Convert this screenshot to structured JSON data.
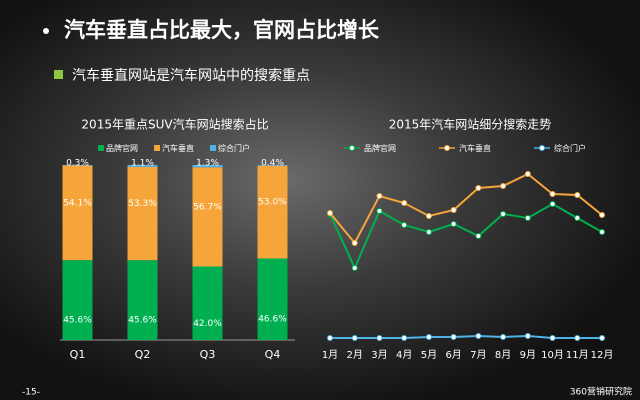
{
  "header": {
    "title": "汽车垂直占比最大，官网占比增长",
    "bullet": "汽车垂直网站是汽车网站中的搜索重点"
  },
  "footer": {
    "page": "-15-",
    "brand": "360营销研究院"
  },
  "chart_data": [
    {
      "type": "stacked-bar",
      "title": "2015年重点SUV汽车网站搜索占比",
      "categories": [
        "Q1",
        "Q2",
        "Q3",
        "Q4"
      ],
      "series": [
        {
          "name": "品牌官网",
          "color": "#00b050",
          "values": [
            45.6,
            45.6,
            42.0,
            46.6
          ],
          "value_labels": [
            "45.6%",
            "45.6%",
            "42.0%",
            "46.6%"
          ]
        },
        {
          "name": "汽车垂直",
          "color": "#f6a53a",
          "values": [
            54.1,
            53.3,
            56.7,
            53.0
          ],
          "value_labels": [
            "54.1%",
            "53.3%",
            "56.7%",
            "53.0%"
          ]
        },
        {
          "name": "综合门户",
          "color": "#4fb3e8",
          "values": [
            0.3,
            1.1,
            1.3,
            0.4
          ],
          "value_labels": [
            "0.3%",
            "1.1%",
            "1.3%",
            "0.4%"
          ]
        }
      ]
    },
    {
      "type": "line",
      "title": "2015年汽车网站细分搜索走势",
      "categories": [
        "1月",
        "2月",
        "3月",
        "4月",
        "5月",
        "6月",
        "7月",
        "8月",
        "9月",
        "10月",
        "11月",
        "12月"
      ],
      "series": [
        {
          "name": "品牌官网",
          "color": "#00b050",
          "values": [
            136,
            82,
            139,
            125,
            118,
            126,
            114,
            136,
            132,
            146,
            132,
            118
          ]
        },
        {
          "name": "汽车垂直",
          "color": "#f6a53a",
          "values": [
            137,
            107,
            154,
            147,
            134,
            140,
            162,
            164,
            176,
            156,
            155,
            135
          ]
        },
        {
          "name": "综合门户",
          "color": "#4fb3e8",
          "values": [
            12,
            12,
            12,
            12,
            13,
            13,
            14,
            13,
            14,
            12,
            12,
            12
          ]
        }
      ]
    }
  ]
}
